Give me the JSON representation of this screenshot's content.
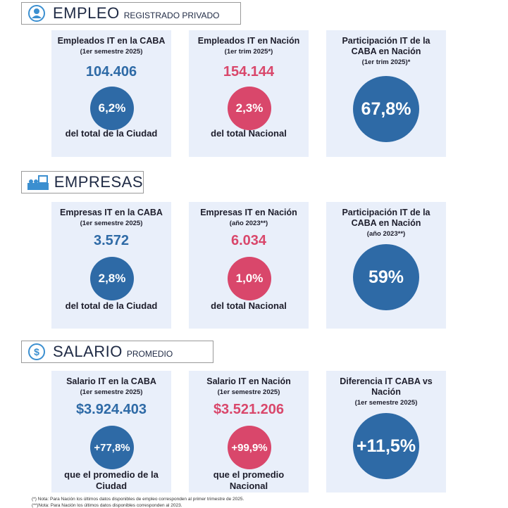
{
  "sections": [
    {
      "title": "EMPLEO",
      "subtitle": "REGISTRADO PRIVADO",
      "cards": [
        {
          "title": "Empleados IT en la CABA",
          "subtitle": "(1er semestre 2025)",
          "value": "104.406",
          "circle": "6,2%",
          "footer": "del total de la Ciudad",
          "color": "#2e6aa6"
        },
        {
          "title": "Empleados IT en Nación",
          "subtitle": "(1er trim 2025*)",
          "value": "154.144",
          "circle": "2,3%",
          "footer": "del total Nacional",
          "color": "#d9476b"
        },
        {
          "title": "Participación IT de la CABA en Nación",
          "subtitle": "(1er trim 2025)*",
          "circle": "67,8%",
          "color": "#2e6aa6"
        }
      ]
    },
    {
      "title": "EMPRESAS",
      "cards": [
        {
          "title": "Empresas IT en la CABA",
          "subtitle": "(1er semestre 2025)",
          "value": "3.572",
          "circle": "2,8%",
          "footer": "del total de la Ciudad",
          "color": "#2e6aa6"
        },
        {
          "title": "Empresas IT en Nación",
          "subtitle": "(año 2023**)",
          "value": "6.034",
          "circle": "1,0%",
          "footer": "del total Nacional",
          "color": "#d9476b"
        },
        {
          "title": "Participación IT de la CABA en Nación",
          "subtitle": "(año 2023**)",
          "circle": "59%",
          "color": "#2e6aa6"
        }
      ]
    },
    {
      "title": "SALARIO",
      "subtitle": "PROMEDIO",
      "cards": [
        {
          "title": "Salario IT en la CABA",
          "subtitle": "(1er semestre 2025)",
          "value": "$3.924.403",
          "circle": "+77,8%",
          "footer": "que el promedio de la Ciudad",
          "color": "#2e6aa6"
        },
        {
          "title": "Salario IT en Nación",
          "subtitle": "(1er semestre 2025)",
          "value": "$3.521.206",
          "circle": "+99,9%",
          "footer": "que el promedio Nacional",
          "color": "#d9476b"
        },
        {
          "title": "Diferencia IT CABA vs Nación",
          "subtitle": "(1er semestre 2025)",
          "circle": "+11,5%",
          "color": "#2e6aa6"
        }
      ]
    }
  ],
  "notes": [
    "(*) Nota: Para Nación los últimos datos disponibles de empleo corresponden al primer trimestre de 2025.",
    "(**)Nota: Para Nación los últimos datos disponibles corresponden al 2023."
  ]
}
